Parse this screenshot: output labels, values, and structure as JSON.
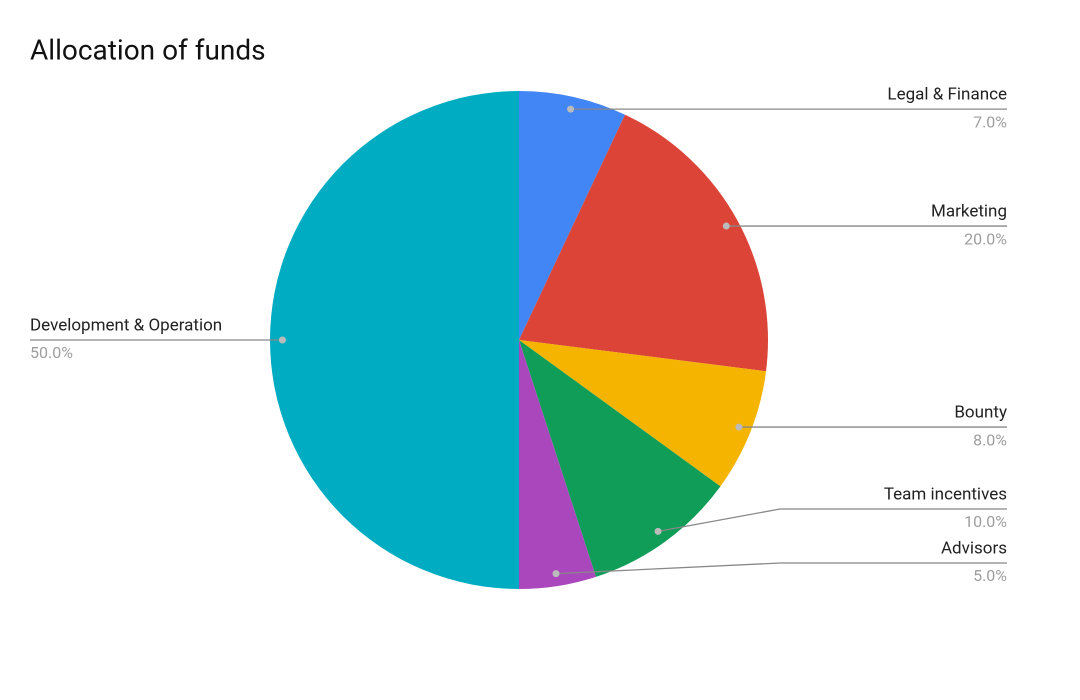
{
  "chart_data": {
    "type": "pie",
    "title": "Allocation of funds",
    "categories": [
      "Legal & Finance",
      "Marketing",
      "Bounty",
      "Team incentives",
      "Advisors",
      "Development & Operation"
    ],
    "values": [
      7,
      20,
      8,
      10,
      5,
      50
    ],
    "value_labels": [
      "7.0%",
      "20.0%",
      "8.0%",
      "10.0%",
      "5.0%",
      "50.0%"
    ],
    "colors": [
      "#4285f4",
      "#db4437",
      "#f4b400",
      "#0f9d58",
      "#ab47bc",
      "#00acc1"
    ]
  }
}
